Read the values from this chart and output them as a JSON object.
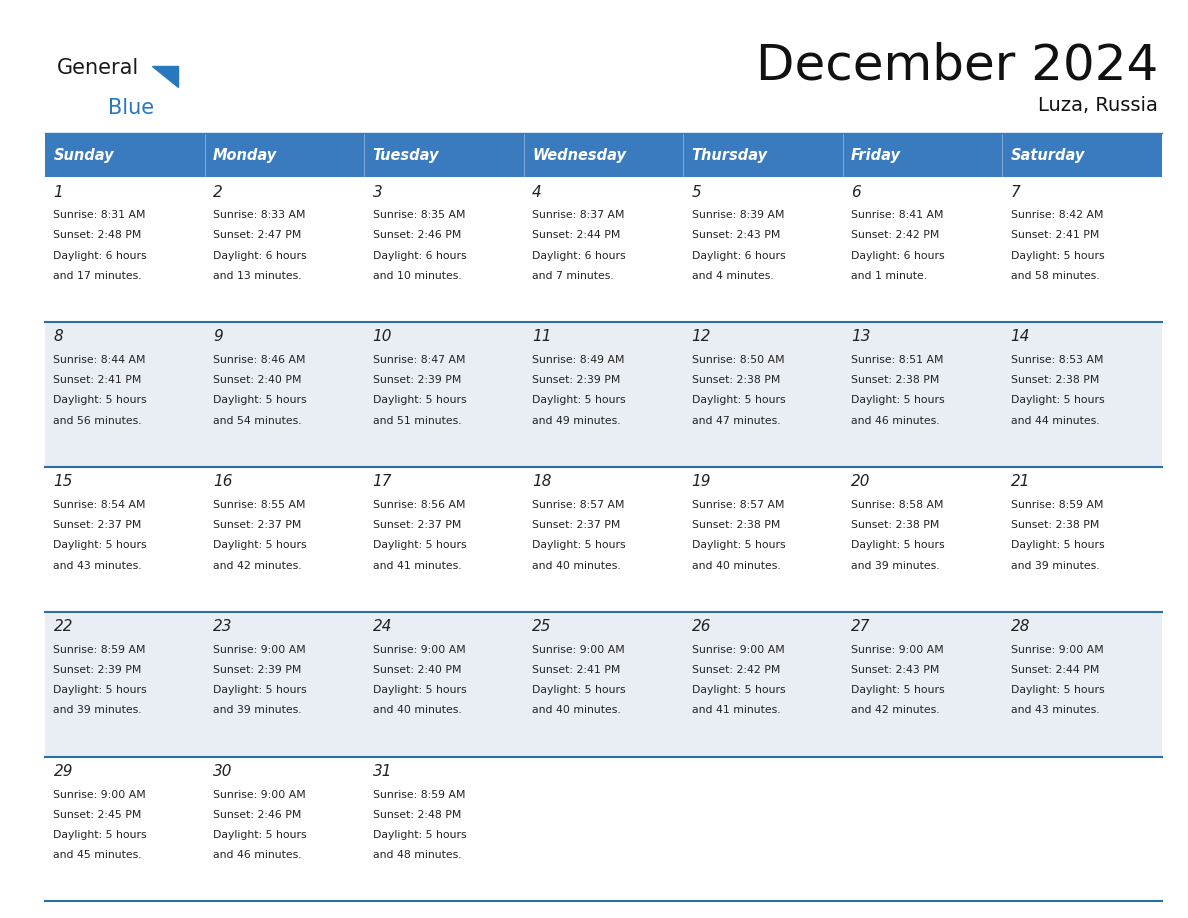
{
  "title": "December 2024",
  "subtitle": "Luza, Russia",
  "header_color": "#3a7abf",
  "header_text_color": "#ffffff",
  "days_of_week": [
    "Sunday",
    "Monday",
    "Tuesday",
    "Wednesday",
    "Thursday",
    "Friday",
    "Saturday"
  ],
  "weeks": [
    [
      {
        "day": "1",
        "sunrise": "8:31 AM",
        "sunset": "2:48 PM",
        "daylight_h": "6 hours",
        "daylight_m": "and 17 minutes."
      },
      {
        "day": "2",
        "sunrise": "8:33 AM",
        "sunset": "2:47 PM",
        "daylight_h": "6 hours",
        "daylight_m": "and 13 minutes."
      },
      {
        "day": "3",
        "sunrise": "8:35 AM",
        "sunset": "2:46 PM",
        "daylight_h": "6 hours",
        "daylight_m": "and 10 minutes."
      },
      {
        "day": "4",
        "sunrise": "8:37 AM",
        "sunset": "2:44 PM",
        "daylight_h": "6 hours",
        "daylight_m": "and 7 minutes."
      },
      {
        "day": "5",
        "sunrise": "8:39 AM",
        "sunset": "2:43 PM",
        "daylight_h": "6 hours",
        "daylight_m": "and 4 minutes."
      },
      {
        "day": "6",
        "sunrise": "8:41 AM",
        "sunset": "2:42 PM",
        "daylight_h": "6 hours",
        "daylight_m": "and 1 minute."
      },
      {
        "day": "7",
        "sunrise": "8:42 AM",
        "sunset": "2:41 PM",
        "daylight_h": "5 hours",
        "daylight_m": "and 58 minutes."
      }
    ],
    [
      {
        "day": "8",
        "sunrise": "8:44 AM",
        "sunset": "2:41 PM",
        "daylight_h": "5 hours",
        "daylight_m": "and 56 minutes."
      },
      {
        "day": "9",
        "sunrise": "8:46 AM",
        "sunset": "2:40 PM",
        "daylight_h": "5 hours",
        "daylight_m": "and 54 minutes."
      },
      {
        "day": "10",
        "sunrise": "8:47 AM",
        "sunset": "2:39 PM",
        "daylight_h": "5 hours",
        "daylight_m": "and 51 minutes."
      },
      {
        "day": "11",
        "sunrise": "8:49 AM",
        "sunset": "2:39 PM",
        "daylight_h": "5 hours",
        "daylight_m": "and 49 minutes."
      },
      {
        "day": "12",
        "sunrise": "8:50 AM",
        "sunset": "2:38 PM",
        "daylight_h": "5 hours",
        "daylight_m": "and 47 minutes."
      },
      {
        "day": "13",
        "sunrise": "8:51 AM",
        "sunset": "2:38 PM",
        "daylight_h": "5 hours",
        "daylight_m": "and 46 minutes."
      },
      {
        "day": "14",
        "sunrise": "8:53 AM",
        "sunset": "2:38 PM",
        "daylight_h": "5 hours",
        "daylight_m": "and 44 minutes."
      }
    ],
    [
      {
        "day": "15",
        "sunrise": "8:54 AM",
        "sunset": "2:37 PM",
        "daylight_h": "5 hours",
        "daylight_m": "and 43 minutes."
      },
      {
        "day": "16",
        "sunrise": "8:55 AM",
        "sunset": "2:37 PM",
        "daylight_h": "5 hours",
        "daylight_m": "and 42 minutes."
      },
      {
        "day": "17",
        "sunrise": "8:56 AM",
        "sunset": "2:37 PM",
        "daylight_h": "5 hours",
        "daylight_m": "and 41 minutes."
      },
      {
        "day": "18",
        "sunrise": "8:57 AM",
        "sunset": "2:37 PM",
        "daylight_h": "5 hours",
        "daylight_m": "and 40 minutes."
      },
      {
        "day": "19",
        "sunrise": "8:57 AM",
        "sunset": "2:38 PM",
        "daylight_h": "5 hours",
        "daylight_m": "and 40 minutes."
      },
      {
        "day": "20",
        "sunrise": "8:58 AM",
        "sunset": "2:38 PM",
        "daylight_h": "5 hours",
        "daylight_m": "and 39 minutes."
      },
      {
        "day": "21",
        "sunrise": "8:59 AM",
        "sunset": "2:38 PM",
        "daylight_h": "5 hours",
        "daylight_m": "and 39 minutes."
      }
    ],
    [
      {
        "day": "22",
        "sunrise": "8:59 AM",
        "sunset": "2:39 PM",
        "daylight_h": "5 hours",
        "daylight_m": "and 39 minutes."
      },
      {
        "day": "23",
        "sunrise": "9:00 AM",
        "sunset": "2:39 PM",
        "daylight_h": "5 hours",
        "daylight_m": "and 39 minutes."
      },
      {
        "day": "24",
        "sunrise": "9:00 AM",
        "sunset": "2:40 PM",
        "daylight_h": "5 hours",
        "daylight_m": "and 40 minutes."
      },
      {
        "day": "25",
        "sunrise": "9:00 AM",
        "sunset": "2:41 PM",
        "daylight_h": "5 hours",
        "daylight_m": "and 40 minutes."
      },
      {
        "day": "26",
        "sunrise": "9:00 AM",
        "sunset": "2:42 PM",
        "daylight_h": "5 hours",
        "daylight_m": "and 41 minutes."
      },
      {
        "day": "27",
        "sunrise": "9:00 AM",
        "sunset": "2:43 PM",
        "daylight_h": "5 hours",
        "daylight_m": "and 42 minutes."
      },
      {
        "day": "28",
        "sunrise": "9:00 AM",
        "sunset": "2:44 PM",
        "daylight_h": "5 hours",
        "daylight_m": "and 43 minutes."
      }
    ],
    [
      {
        "day": "29",
        "sunrise": "9:00 AM",
        "sunset": "2:45 PM",
        "daylight_h": "5 hours",
        "daylight_m": "and 45 minutes."
      },
      {
        "day": "30",
        "sunrise": "9:00 AM",
        "sunset": "2:46 PM",
        "daylight_h": "5 hours",
        "daylight_m": "and 46 minutes."
      },
      {
        "day": "31",
        "sunrise": "8:59 AM",
        "sunset": "2:48 PM",
        "daylight_h": "5 hours",
        "daylight_m": "and 48 minutes."
      },
      null,
      null,
      null,
      null
    ]
  ],
  "bg_color": "#ffffff",
  "cell_bg_alt": "#e8eef4",
  "cell_bg_white": "#ffffff",
  "row_separator_color": "#2e6da4",
  "logo_color1": "#1a1a1a",
  "logo_color2": "#2878c0",
  "logo_triangle_color": "#2878c0"
}
